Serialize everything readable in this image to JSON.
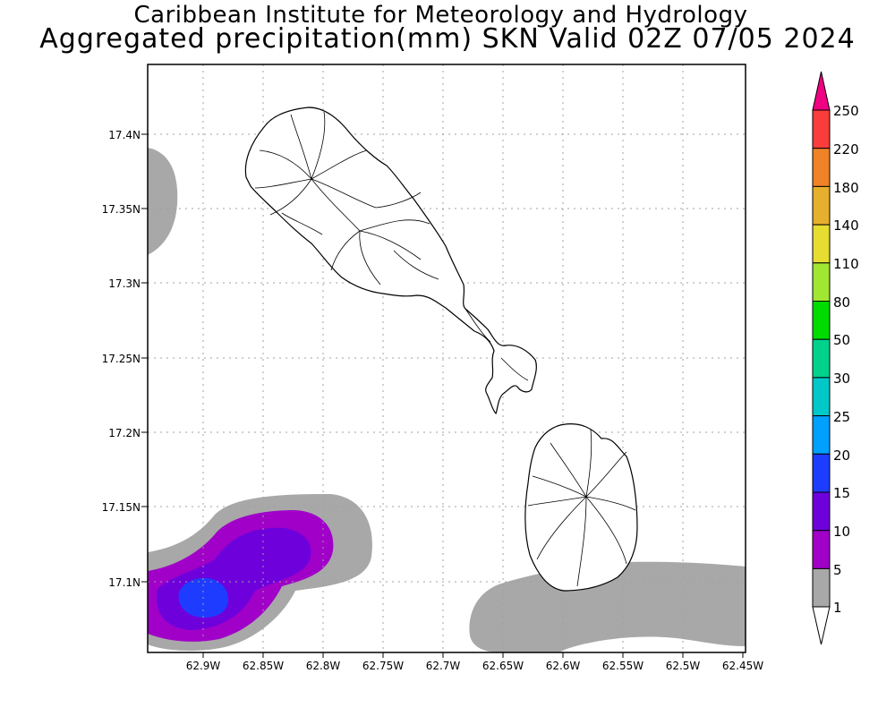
{
  "header": {
    "title": "Caribbean Institute for Meteorology and Hydrology",
    "subtitle": "Aggregated precipitation(mm) SKN Valid 02Z 07/05 2024"
  },
  "map": {
    "lat_labels": [
      "17.4N",
      "17.35N",
      "17.3N",
      "17.25N",
      "17.2N",
      "17.15N",
      "17.1N"
    ],
    "lon_labels": [
      "62.9W",
      "62.85W",
      "62.8W",
      "62.75W",
      "62.7W",
      "62.65W",
      "62.6W",
      "62.55W",
      "62.5W",
      "62.45W"
    ]
  },
  "legend": {
    "levels": [
      "1",
      "5",
      "10",
      "15",
      "20",
      "25",
      "30",
      "50",
      "80",
      "110",
      "140",
      "180",
      "220",
      "250"
    ],
    "colors": {
      "1-5": "#a8a8a8",
      "5-10": "#a000c8",
      "10-15": "#6e00dc",
      "15-20": "#1e3cff",
      "20-25": "#00a0ff",
      "25-30": "#00c8c8",
      "30-50": "#00d28c",
      "50-80": "#00dc00",
      "80-110": "#a0e632",
      "110-140": "#e6dc32",
      "140-180": "#e6af2d",
      "180-220": "#f08228",
      "220-250": "#fa3c3c",
      "over-250": "#f00082"
    }
  }
}
